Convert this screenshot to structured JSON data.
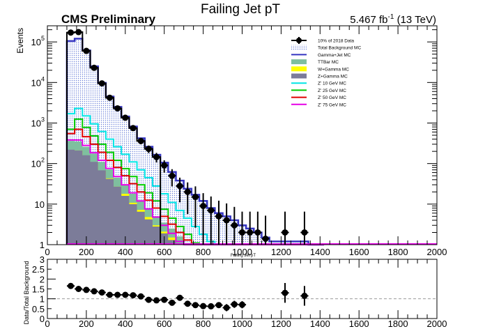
{
  "chart_data": {
    "type": "histogram",
    "title": "Failing Jet pT",
    "cms_label": "CMS Preliminary",
    "lumi_label": "5.467 fb",
    "lumi_exp": "-1",
    "energy_label": " (13 TeV)",
    "xlabel": "Failing Jet pT",
    "ylabel": "Events",
    "ratio_ylabel": "Data/Total Background",
    "log_y": true,
    "xlim": [
      0,
      2000
    ],
    "ylim": [
      1,
      250000
    ],
    "ratio_ylim": [
      0,
      3
    ],
    "xticks": [
      "0",
      "200",
      "400",
      "600",
      "800",
      "1000",
      "1200",
      "1400",
      "1600",
      "1800",
      "2000"
    ],
    "yticks": [
      "1",
      "10",
      "10",
      "10",
      "10",
      "10"
    ],
    "yticks_exp": [
      "",
      "",
      "2",
      "3",
      "4",
      "5"
    ],
    "ratio_yticks": [
      "0",
      "0.5",
      "1",
      "1.5",
      "2",
      "2.5",
      "3"
    ],
    "bin_edges": [
      100,
      140,
      180,
      220,
      260,
      300,
      340,
      380,
      420,
      460,
      500,
      540,
      580,
      620,
      660,
      700,
      740,
      780,
      820,
      860,
      900,
      940,
      980,
      1020,
      1060,
      1100,
      1140,
      1180,
      1220,
      1260,
      1300,
      1340,
      1380,
      1420
    ],
    "series": [
      {
        "name": "10% of 2018 Data",
        "kind": "data",
        "color": "#000000",
        "x": [
          120,
          160,
          200,
          240,
          280,
          320,
          360,
          400,
          440,
          480,
          520,
          560,
          600,
          640,
          680,
          720,
          760,
          800,
          840,
          880,
          920,
          960,
          1000,
          1040,
          1080,
          1120,
          1220,
          1320
        ],
        "y": [
          170000,
          175000,
          60000,
          23000,
          9500,
          4200,
          2300,
          1350,
          750,
          360,
          230,
          145,
          90,
          50,
          28,
          20,
          15,
          9,
          7,
          5,
          4,
          3,
          2,
          2,
          2,
          1.4,
          2,
          2
        ],
        "ratio": [
          1.65,
          1.5,
          1.45,
          1.35,
          1.3,
          1.2,
          1.2,
          1.2,
          1.2,
          1.1,
          0.92,
          0.92,
          0.95,
          0.8,
          1.05,
          0.75,
          0.68,
          0.63,
          0.62,
          0.68,
          0.55,
          0.72,
          0.7,
          1.3,
          1.15,
          null,
          null,
          null
        ]
      },
      {
        "name": "Total Background MC",
        "kind": "band",
        "color": "#5b5bd6",
        "values": [
          105000,
          120000,
          62000,
          25000,
          9800,
          4500,
          2500,
          1450,
          820,
          420,
          260,
          165,
          105,
          62,
          38,
          24,
          17,
          12,
          8,
          6,
          5,
          4,
          3,
          2.5,
          2,
          1.5,
          1.2,
          1.2,
          1.2,
          1.2,
          1.2,
          0,
          0
        ]
      },
      {
        "name": "Gamma+Jet MC",
        "kind": "line",
        "color": "#3535c0",
        "values": [
          105000,
          120000,
          62000,
          25000,
          9800,
          4500,
          2500,
          1450,
          820,
          420,
          260,
          165,
          105,
          62,
          38,
          24,
          17,
          12,
          8,
          6,
          5,
          4,
          3,
          2.5,
          2,
          1.5,
          1.2,
          1.2,
          1.2,
          1.2,
          1.2,
          0,
          0
        ]
      },
      {
        "name": "TTBar MC",
        "kind": "fill",
        "color": "#7fbf9f",
        "values": [
          360,
          350,
          260,
          175,
          110,
          72,
          45,
          30,
          18,
          12,
          8,
          5,
          3.5,
          2.5,
          1.6,
          1.1,
          0,
          0,
          0,
          0,
          0,
          0,
          0,
          0,
          0,
          0,
          0,
          0,
          0,
          0,
          0,
          0,
          0
        ]
      },
      {
        "name": "W+Gamma MC",
        "kind": "fill",
        "color": "#ffff00",
        "values": [
          360,
          350,
          260,
          175,
          110,
          72,
          45,
          30,
          18,
          12,
          8,
          5,
          3.5,
          2.5,
          1.6,
          1.1,
          0,
          0,
          0,
          0,
          0,
          0,
          0,
          0,
          0,
          0,
          0,
          0,
          0,
          0,
          0,
          0,
          0
        ]
      },
      {
        "name": "Z+Gamma MC",
        "kind": "fill",
        "color": "#7c7c99",
        "values": [
          220,
          210,
          160,
          110,
          68,
          42,
          27,
          16,
          10,
          6.5,
          4.2,
          2.8,
          1.9,
          1.3,
          0,
          0,
          0,
          0,
          0,
          0,
          0,
          0,
          0,
          0,
          0,
          0,
          0,
          0,
          0,
          0,
          0,
          0,
          0
        ]
      },
      {
        "name": "Z' 10 GeV MC",
        "kind": "line",
        "color": "#00e6e6",
        "values": [
          1700,
          2300,
          1500,
          950,
          620,
          400,
          260,
          170,
          110,
          70,
          45,
          28,
          18,
          11,
          7,
          4.5,
          2.8,
          1.8,
          1.2,
          0,
          0,
          0,
          0,
          0,
          0,
          0,
          0,
          0,
          0,
          0,
          0,
          0,
          0
        ]
      },
      {
        "name": "Z' 25 GeV MC",
        "kind": "line",
        "color": "#00cc00",
        "values": [
          700,
          1250,
          780,
          480,
          300,
          190,
          120,
          75,
          48,
          30,
          19,
          12,
          7.5,
          4.5,
          2.8,
          1.8,
          1.1,
          0,
          0,
          0,
          0,
          0,
          0,
          0,
          0,
          0,
          0,
          0,
          0,
          0,
          0,
          0,
          0
        ]
      },
      {
        "name": "Z' 50 GeV MC",
        "kind": "line",
        "color": "#e00000",
        "values": [
          550,
          700,
          460,
          300,
          190,
          120,
          80,
          50,
          32,
          20,
          12.5,
          8,
          5,
          3.2,
          2,
          1.3,
          0,
          0,
          0,
          0,
          0,
          0,
          0,
          0,
          0,
          0,
          0,
          0,
          0,
          0,
          0,
          0,
          0
        ]
      },
      {
        "name": "Z' 75 GeV MC",
        "kind": "line",
        "color": "#e600e6",
        "values": [
          380,
          380,
          280,
          185,
          120,
          76,
          48,
          30,
          19,
          12,
          7.6,
          4.8,
          3,
          1.9,
          1.2,
          0,
          0,
          0,
          0,
          0,
          0,
          0,
          0,
          0,
          0,
          0,
          0,
          0,
          0,
          0,
          0,
          0,
          0
        ]
      }
    ]
  }
}
